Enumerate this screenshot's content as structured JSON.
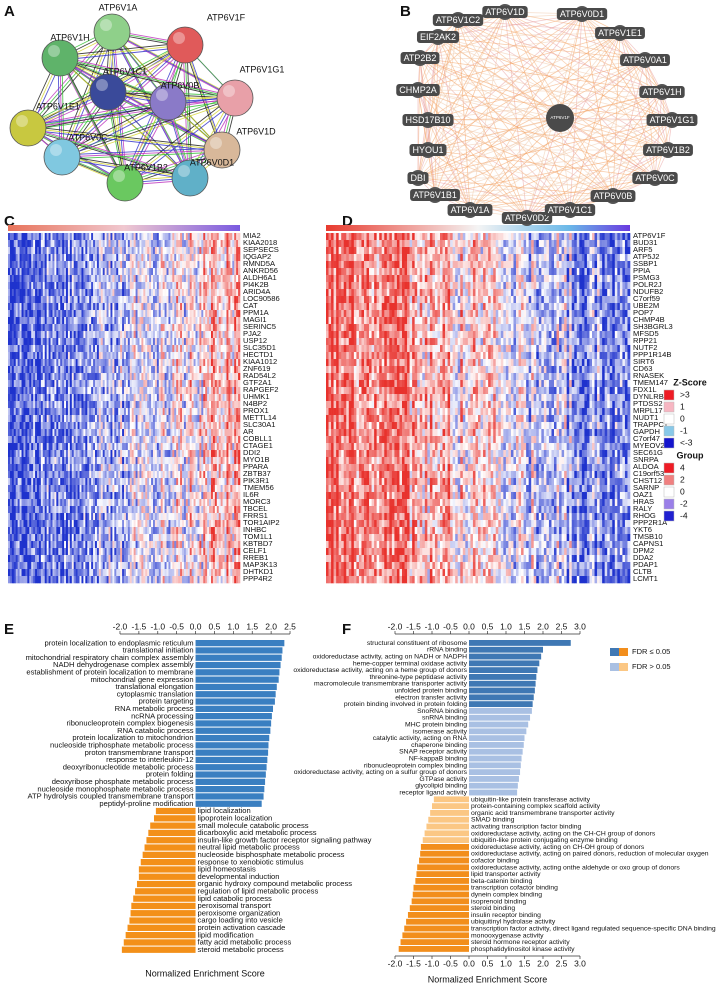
{
  "panel_labels": [
    "A",
    "B",
    "C",
    "D",
    "E",
    "F"
  ],
  "network_a": {
    "nodes": [
      {
        "name": "ATP6V1A",
        "color": "#8fd08a"
      },
      {
        "name": "ATP6V1F",
        "color": "#e05a5a"
      },
      {
        "name": "ATP6V1H",
        "color": "#5fb36a"
      },
      {
        "name": "ATP6V1C1",
        "color": "#3a4a9a"
      },
      {
        "name": "ATP6V1G1",
        "color": "#e8a0a8"
      },
      {
        "name": "ATP6V0B",
        "color": "#8a7ac8"
      },
      {
        "name": "ATP6V1E1",
        "color": "#c8c840"
      },
      {
        "name": "ATP6V1D",
        "color": "#d8b89a"
      },
      {
        "name": "ATP6V0C",
        "color": "#80c8e0"
      },
      {
        "name": "ATP6V1B2",
        "color": "#6ac860"
      },
      {
        "name": "ATP6V0D1",
        "color": "#60b0c8"
      }
    ]
  },
  "network_b": {
    "center": "ATP6V1F",
    "nodes": [
      "ATP6V1D",
      "ATP6V0D1",
      "ATP6V1C2",
      "EIF2AK2",
      "ATP6V1E1",
      "ATP2B2",
      "ATP6V0A1",
      "CHMP2A",
      "ATP6V1H",
      "HSD17B10",
      "ATP6V1G1",
      "HYOU1",
      "ATP6V1B2",
      "DBI",
      "ATP6V0C",
      "ATP6V1B1",
      "ATP6V0B",
      "ATP6V1A",
      "ATP6V0D2",
      "ATP6V1C1"
    ]
  },
  "heatmap_c": {
    "genes": [
      "MIA2",
      "KIAA2018",
      "SEPSECS",
      "IQGAP2",
      "RMND5A",
      "ANKRD56",
      "ALDH6A1",
      "PI4K2B",
      "ARID4A",
      "LOC90586",
      "CAT",
      "PPM1A",
      "MAGI1",
      "SERINC5",
      "PJA2",
      "USP12",
      "SLC35D1",
      "HECTD1",
      "KIAA1012",
      "ZNF619",
      "RAD54L2",
      "GTF2A1",
      "RAPGEF2",
      "UHMK1",
      "N4BP2",
      "PROX1",
      "METTL14",
      "SLC30A1",
      "AR",
      "COBLL1",
      "CTAGE1",
      "DDI2",
      "MYO1B",
      "PPARA",
      "ZBTB37",
      "PIK3R1",
      "TMEM56",
      "IL6R",
      "MORC3",
      "TBCEL",
      "FRRS1",
      "TOR1AIP2",
      "INHBC",
      "TOM1L1",
      "KBTBD7",
      "CELF1",
      "RREB1",
      "MAP3K13",
      "DHTKD1",
      "PPP4R2"
    ]
  },
  "heatmap_d": {
    "genes": [
      "ATP6V1F",
      "BUD31",
      "ARF5",
      "ATP5J2",
      "SSBP1",
      "PPIA",
      "PSMG3",
      "POLR2J",
      "NDUFB2",
      "C7orf59",
      "UBE2M",
      "POP7",
      "CHMP4B",
      "SH3BGRL3",
      "MFSD5",
      "RPP21",
      "NUTF2",
      "PPP1R14B",
      "SIRT6",
      "CD63",
      "RNASEK",
      "TMEM147",
      "FDX1L",
      "DYNLRB1",
      "PTDSS2",
      "MRPL17",
      "NUDT1",
      "TRAPPC1",
      "GAPDH",
      "C7orf47",
      "MYEOV2",
      "SEC61G",
      "SNRPA",
      "ALDOA",
      "C19orf53",
      "CHST12",
      "SARNP",
      "OAZ1",
      "HRAS",
      "RALY",
      "RHOG",
      "PPP2R1A",
      "YKT6",
      "TMSB10",
      "CAPNS1",
      "DPM2",
      "DDA2",
      "PDAP1",
      "CLTB",
      "LCMT1"
    ]
  },
  "heatmap_legend": {
    "zscore": {
      "title": "Z-Score",
      "items": [
        {
          "label": ">3",
          "color": "#ee1c25"
        },
        {
          "label": "1",
          "color": "#f7b6c2"
        },
        {
          "label": "0",
          "color": "#ffffff"
        },
        {
          "label": "-1",
          "color": "#88c8e8"
        },
        {
          "label": "<-3",
          "color": "#1515cc"
        }
      ]
    },
    "group": {
      "title": "Group",
      "items": [
        {
          "label": "4",
          "color": "#ee1c25"
        },
        {
          "label": "2",
          "color": "#f08080"
        },
        {
          "label": "0",
          "color": "#ffffff"
        },
        {
          "label": "-2",
          "color": "#9a7fe8"
        },
        {
          "label": "-4",
          "color": "#2020d0"
        }
      ]
    }
  },
  "chart_data": [
    {
      "type": "bar",
      "orientation": "horizontal",
      "xlabel": "Normalized Enrichment Score",
      "categories": [
        "protein localization to endoplasmic reticulum",
        "translational initiation",
        "mitochondrial respiratory chain complex assembly",
        "NADH dehydrogenase complex assembly",
        "establishment of protein localization to membrane",
        "mitochondrial gene expression",
        "translational elongation",
        "cytoplasmic translation",
        "protein targeting",
        "RNA metabolic process",
        "ncRNA processing",
        "ribonucleoprotein complex biogenesis",
        "RNA catabolic process",
        "protein localization to mitochondrion",
        "nucleoside triphosphate metabolic process",
        "proton transmembrane transport",
        "response to interleukin-12",
        "deoxyribonucleotide metabolic process",
        "protein folding",
        "deoxyribose phosphate metabolic process",
        "nucleoside monophosphate metabolic process",
        "ATP hydrolysis coupled transmembrane transport",
        "peptidyl-proline modification",
        "lipid localization",
        "lipoprotein localization",
        "small molecule catabolic process",
        "dicarboxylic acid metabolic process",
        "insulin-like growth factor receptor signaling pathway",
        "neutral lipid metabolic process",
        "nucleoside bisphosphate metabolic process",
        "response to xenobiotic stimulus",
        "lipid homeostasis",
        "developmental induction",
        "organic hydroxy compound metabolic process",
        "regulation of lipid metabolic process",
        "lipid catabolic process",
        "peroxisomal transport",
        "peroxisome organization",
        "cargo loading into vesicle",
        "protein activation cascade",
        "lipid modification",
        "fatty acid metabolic process",
        "steroid metabolic process"
      ],
      "values": [
        2.35,
        2.3,
        2.28,
        2.25,
        2.22,
        2.2,
        2.15,
        2.12,
        2.1,
        2.05,
        2.02,
        2.0,
        1.98,
        1.95,
        1.93,
        1.92,
        1.9,
        1.88,
        1.86,
        1.84,
        1.82,
        1.8,
        1.75,
        -1.05,
        -1.1,
        -1.2,
        -1.25,
        -1.3,
        -1.35,
        -1.4,
        -1.45,
        -1.5,
        -1.5,
        -1.55,
        -1.6,
        -1.65,
        -1.7,
        -1.72,
        -1.75,
        -1.8,
        -1.85,
        -1.9,
        -1.95
      ],
      "colors": [
        "#3a7fc1",
        "#3a7fc1",
        "#3a7fc1",
        "#3a7fc1",
        "#3a7fc1",
        "#3a7fc1",
        "#3a7fc1",
        "#3a7fc1",
        "#3a7fc1",
        "#3a7fc1",
        "#3a7fc1",
        "#3a7fc1",
        "#3a7fc1",
        "#3a7fc1",
        "#3a7fc1",
        "#3a7fc1",
        "#3a7fc1",
        "#3a7fc1",
        "#3a7fc1",
        "#3a7fc1",
        "#3a7fc1",
        "#3a7fc1",
        "#3a7fc1",
        "#f39019",
        "#f39019",
        "#f39019",
        "#f39019",
        "#f39019",
        "#f39019",
        "#f39019",
        "#f39019",
        "#f39019",
        "#f39019",
        "#f39019",
        "#f39019",
        "#f39019",
        "#f39019",
        "#f39019",
        "#f39019",
        "#f39019",
        "#f39019",
        "#f39019",
        "#f39019"
      ],
      "xlim": [
        -2.1,
        2.6
      ],
      "xticks": [
        {
          "value": -2,
          "label": "-2.0"
        },
        -1.5,
        {
          "value": -1,
          "label": "-1.0"
        },
        -0.5,
        {
          "value": 0,
          "label": "0.0"
        },
        0.5,
        {
          "value": 1,
          "label": "1.0"
        },
        1.5,
        {
          "value": 2,
          "label": "2.0"
        },
        2.5
      ]
    },
    {
      "type": "bar",
      "orientation": "horizontal",
      "xlabel": "Normalized Enrichment Score",
      "categories": [
        "structural constituent of ribosome",
        "rRNA binding",
        "oxidoreductase activity, acting on NADH or NADPH",
        "heme-copper terminal oxidase activity",
        "oxidoreductase activity, acting on a heme group of donors",
        "threonine-type peptidase activity",
        "macromolecule transmembrane transporter activity",
        "unfolded protein binding",
        "electron transfer activity",
        "protein binding involved in protein folding",
        "SnoRNA binding",
        "snRNA binding",
        "MHC protein binding",
        "isomerase activity",
        "catalytic activity, acting on RNA",
        "chaperone binding",
        "SNAP receptor activity",
        "NF-kappaB binding",
        "ribonucleoprotein complex binding",
        "oxidoreductase activity, acting on a sulfur group of donors",
        "GTPase activity",
        "glycolipid binding",
        "receptor ligand activity",
        "ubiquitin-like protein transferase activity",
        "protein-containing complex scaffold activity",
        "organic acid transmembrane transporter activity",
        "SMAD binding",
        "activating transcription factor binding",
        "oxidoreductase activity, acting on the CH-CH group of donors",
        "ubiquitin-like protein conjugating enzyme binding",
        "oxidoreductase activity, acting on CH-OH group of donors",
        "oxidoreductase activity, acting on paired donors, reduction of molecular oxygen",
        "cofactor binding",
        "oxidoreductase activity, acting onthe aldehyde or oxo group of donors",
        "lipid transporter activity",
        "beta-catenin binding",
        "transcription cofactor binding",
        "dynein complex binding",
        "isoprenoid binding",
        "steroid binding",
        "insulin receptor binding",
        "ubiquitinyl hydrolase activity",
        "transcription factor activity, direct ligand regulated sequence-specific DNA binding",
        "monooxygenase activity",
        "steroid hormone receptor activity",
        "phosphatidylinositol kinase activity"
      ],
      "values": [
        2.75,
        2.0,
        1.95,
        1.9,
        1.85,
        1.82,
        1.8,
        1.78,
        1.75,
        1.72,
        1.7,
        1.65,
        1.6,
        1.55,
        1.5,
        1.48,
        1.45,
        1.42,
        1.4,
        1.38,
        1.35,
        1.32,
        1.3,
        -0.95,
        -1.0,
        -1.05,
        -1.1,
        -1.15,
        -1.2,
        -1.25,
        -1.3,
        -1.32,
        -1.35,
        -1.4,
        -1.42,
        -1.45,
        -1.5,
        -1.52,
        -1.55,
        -1.6,
        -1.65,
        -1.7,
        -1.75,
        -1.8,
        -1.85,
        -1.9
      ],
      "colors": [
        "#3f78b4",
        "#3f78b4",
        "#3f78b4",
        "#3f78b4",
        "#3f78b4",
        "#3f78b4",
        "#3f78b4",
        "#3f78b4",
        "#3f78b4",
        "#3f78b4",
        "#a9c0e3",
        "#a9c0e3",
        "#a9c0e3",
        "#a9c0e3",
        "#a9c0e3",
        "#a9c0e3",
        "#a9c0e3",
        "#a9c0e3",
        "#a9c0e3",
        "#a9c0e3",
        "#a9c0e3",
        "#a9c0e3",
        "#a9c0e3",
        "#fbc784",
        "#fbc784",
        "#fbc784",
        "#fbc784",
        "#fbc784",
        "#fbc784",
        "#fbc784",
        "#f28e1c",
        "#f28e1c",
        "#f28e1c",
        "#f28e1c",
        "#f28e1c",
        "#f28e1c",
        "#f28e1c",
        "#f28e1c",
        "#f28e1c",
        "#f28e1c",
        "#f28e1c",
        "#f28e1c",
        "#f28e1c",
        "#f28e1c",
        "#f28e1c",
        "#f28e1c"
      ],
      "legend": [
        {
          "name": "FDR ≤ 0.05",
          "colors": [
            "#3f78b4",
            "#f28e1c"
          ]
        },
        {
          "name": "FDR > 0.05",
          "colors": [
            "#a9c0e3",
            "#fbc784"
          ]
        }
      ],
      "xlim": [
        -2.1,
        3.1
      ],
      "xticks": [
        {
          "value": -2,
          "label": "-2.0"
        },
        -1.5,
        {
          "value": -1,
          "label": "-1.0"
        },
        -0.5,
        {
          "value": 0,
          "label": "0.0"
        },
        0.5,
        {
          "value": 1,
          "label": "1.0"
        },
        1.5,
        {
          "value": 2,
          "label": "2.0"
        },
        2.5,
        {
          "value": 3,
          "label": "3.0"
        }
      ]
    }
  ]
}
